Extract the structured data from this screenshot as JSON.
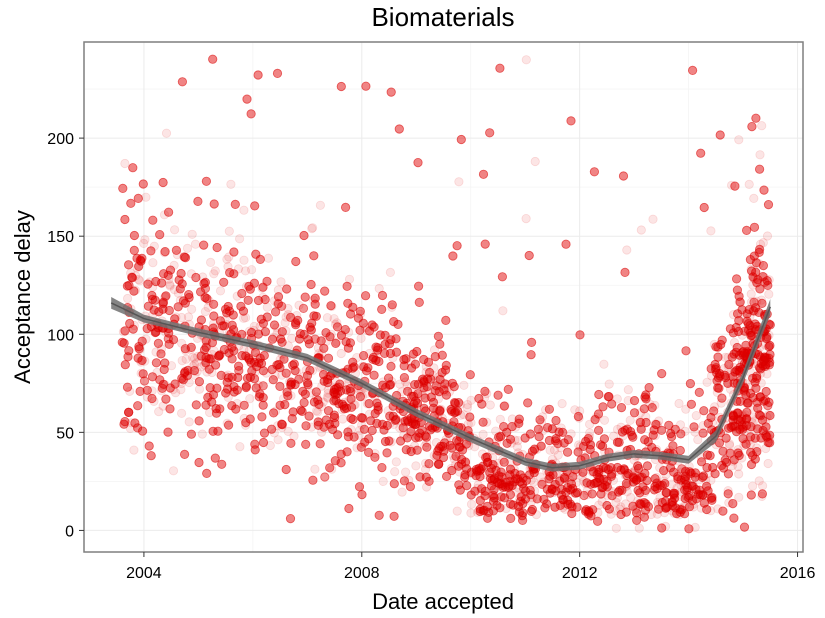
{
  "chart_data": {
    "type": "scatter",
    "title": "Biomaterials",
    "xlabel": "Date accepted",
    "ylabel": "Acceptance delay",
    "x_ticks": [
      "2004",
      "2008",
      "2012",
      "2016"
    ],
    "y_ticks": [
      "0",
      "50",
      "100",
      "150",
      "200"
    ],
    "xlim": [
      2002.9,
      2016.1
    ],
    "ylim": [
      -11,
      249
    ],
    "grid": true,
    "point_color": "#E00000",
    "point_alpha": 0.1,
    "smooth_color": "#707070",
    "panel_border_color": "#7f7f7f",
    "grid_color": "#ebebeb",
    "point_count_approx": 9000,
    "density_profile": [
      {
        "x": 2003.8,
        "y_center": 110,
        "y_spread": 55
      },
      {
        "x": 2005.0,
        "y_center": 100,
        "y_spread": 50
      },
      {
        "x": 2006.5,
        "y_center": 88,
        "y_spread": 45
      },
      {
        "x": 2008.0,
        "y_center": 72,
        "y_spread": 35
      },
      {
        "x": 2009.5,
        "y_center": 55,
        "y_spread": 28
      },
      {
        "x": 2011.0,
        "y_center": 35,
        "y_spread": 25
      },
      {
        "x": 2012.5,
        "y_center": 38,
        "y_spread": 28
      },
      {
        "x": 2014.0,
        "y_center": 36,
        "y_spread": 26
      },
      {
        "x": 2015.2,
        "y_center": 90,
        "y_spread": 50
      }
    ],
    "smooth_line": {
      "x": [
        2003.4,
        2004.0,
        2005.0,
        2006.0,
        2007.0,
        2008.0,
        2009.0,
        2010.0,
        2011.0,
        2011.5,
        2012.0,
        2012.5,
        2013.0,
        2013.5,
        2014.0,
        2014.5,
        2015.0,
        2015.5
      ],
      "y": [
        116,
        108,
        101,
        95,
        88,
        75,
        60,
        47,
        35,
        32,
        33,
        37,
        39,
        38,
        36,
        48,
        78,
        114
      ],
      "band": [
        3,
        2,
        2,
        2,
        2,
        2,
        2,
        2,
        2,
        2,
        2,
        2,
        2,
        2,
        2,
        3,
        3,
        4
      ]
    }
  }
}
